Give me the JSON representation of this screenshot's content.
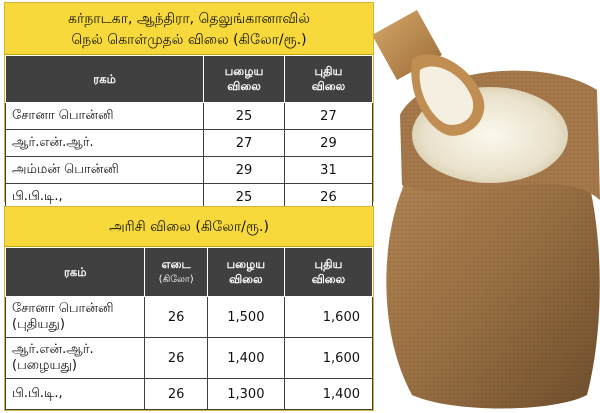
{
  "table1": {
    "title_line1": "கர்நாடகா, ஆந்திரா, தெலுங்கானாவில்",
    "title_line2": "நெல் கொள்முதல் விலை (கிலோ/ரூ.)",
    "headers": {
      "variety": "ரகம்",
      "old_price_l1": "பழைய",
      "old_price_l2": "விலை",
      "new_price_l1": "புதிய",
      "new_price_l2": "விலை"
    },
    "rows": [
      {
        "variety": "சோனா பொன்னி",
        "old": "25",
        "new": "27"
      },
      {
        "variety": "ஆர்.என்.ஆர்.",
        "old": "27",
        "new": "29"
      },
      {
        "variety": "அம்மன் பொன்னி",
        "old": "29",
        "new": "31"
      },
      {
        "variety": "பி.பி.டி.,",
        "old": "25",
        "new": "26"
      }
    ]
  },
  "table2": {
    "title": "அரிசி விலை (கிலோ/ரூ.)",
    "headers": {
      "variety": "ரகம்",
      "weight_l1": "எடை",
      "weight_l2": "(கிலோ)",
      "old_price_l1": "பழைய",
      "old_price_l2": "விலை",
      "new_price_l1": "புதிய",
      "new_price_l2": "விலை"
    },
    "rows": [
      {
        "variety_l1": "சோனா பொன்னி",
        "variety_l2": "(புதியது)",
        "weight": "26",
        "old": "1,500",
        "new": "1,600"
      },
      {
        "variety_l1": "ஆர்.என்.ஆர்.",
        "variety_l2": "(பழையது)",
        "weight": "26",
        "old": "1,400",
        "new": "1,600"
      },
      {
        "variety_l1": "பி.பி.டி.,",
        "variety_l2": "",
        "weight": "26",
        "old": "1,300",
        "new": "1,400"
      }
    ]
  },
  "colors": {
    "title_bg": "#f7d93b",
    "header_bg": "#404040",
    "sack": "#a67c52"
  }
}
